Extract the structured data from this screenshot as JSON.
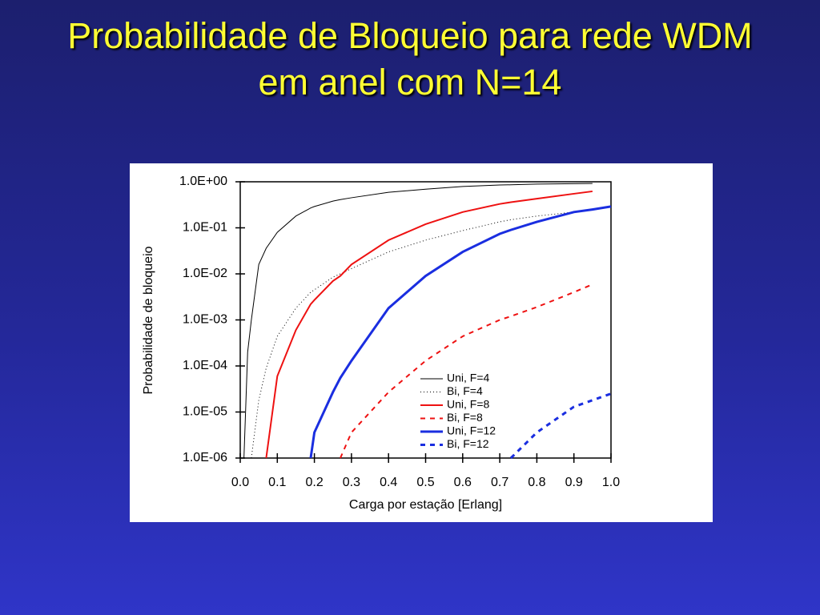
{
  "title": "Probabilidade de Bloqueio para rede WDM em anel com N=14",
  "chart_data": {
    "type": "line",
    "x_label": "Carga por estação [Erlang]",
    "y_label": "Probabilidade de bloqueio",
    "x": [
      0.01,
      0.02,
      0.03,
      0.05,
      0.07,
      0.1,
      0.15,
      0.19,
      0.2,
      0.25,
      0.27,
      0.3,
      0.4,
      0.5,
      0.6,
      0.7,
      0.73,
      0.8,
      0.9,
      0.95,
      1.0
    ],
    "series": [
      {
        "name": "Uni, F=4",
        "color": "#000000",
        "line_style": "solid",
        "line_width": 1,
        "values": [
          1e-06,
          0.0002,
          0.001,
          0.016,
          0.036,
          0.08,
          0.18,
          0.27,
          0.29,
          0.38,
          0.41,
          0.45,
          0.59,
          0.69,
          0.79,
          0.85,
          0.86,
          0.89,
          0.91,
          0.92,
          null
        ]
      },
      {
        "name": "Bi, F=4",
        "color": "#000000",
        "line_style": "dotted",
        "line_width": 1,
        "values": [
          null,
          null,
          1e-06,
          1.8e-05,
          9e-05,
          0.00044,
          0.0018,
          0.004,
          0.0045,
          0.0085,
          0.01,
          0.013,
          0.03,
          0.054,
          0.087,
          0.135,
          0.15,
          0.18,
          0.22,
          0.25,
          null
        ]
      },
      {
        "name": "Uni, F=8",
        "color": "#ee1111",
        "line_style": "solid",
        "line_width": 2,
        "values": [
          null,
          null,
          null,
          null,
          1e-06,
          6e-05,
          0.0006,
          0.0022,
          0.0027,
          0.007,
          0.009,
          0.016,
          0.054,
          0.12,
          0.22,
          0.33,
          0.36,
          0.43,
          0.55,
          0.62,
          null
        ]
      },
      {
        "name": "Bi, F=8",
        "color": "#ee1111",
        "line_style": "dashed",
        "line_width": 2,
        "values": [
          null,
          null,
          null,
          null,
          null,
          null,
          null,
          null,
          null,
          null,
          1e-06,
          3.6e-06,
          2.7e-05,
          0.00013,
          0.00044,
          0.001,
          0.0012,
          0.0019,
          0.004,
          0.0059,
          null
        ]
      },
      {
        "name": "Uni, F=12",
        "color": "#1a2ee0",
        "line_style": "solid",
        "line_width": 3,
        "values": [
          null,
          null,
          null,
          null,
          null,
          null,
          null,
          1e-06,
          3.6e-06,
          2.7e-05,
          5.5e-05,
          0.00013,
          0.0018,
          0.009,
          0.03,
          0.074,
          0.09,
          0.135,
          0.22,
          0.25,
          0.29
        ]
      },
      {
        "name": "Bi, F=12",
        "color": "#1a2ee0",
        "line_style": "dashed",
        "line_width": 3,
        "values": [
          null,
          null,
          null,
          null,
          null,
          null,
          null,
          null,
          null,
          null,
          null,
          null,
          null,
          null,
          null,
          null,
          1e-06,
          3.6e-06,
          1.3e-05,
          1.8e-05,
          2.5e-05
        ]
      }
    ],
    "xlim": [
      0,
      1
    ],
    "xticks": [
      {
        "value": 0,
        "label": "0.0"
      },
      0.1,
      0.2,
      0.3,
      0.4,
      0.5,
      0.6,
      0.7,
      0.8,
      0.9,
      {
        "value": 1,
        "label": "1.0"
      }
    ],
    "ylim": [
      1e-06,
      1
    ],
    "log_y": true,
    "yticks": [
      {
        "value": 1,
        "label": "1.0E+00"
      },
      {
        "value": 0.1,
        "label": "1.0E-01"
      },
      {
        "value": 0.01,
        "label": "1.0E-02"
      },
      {
        "value": 0.001,
        "label": "1.0E-03"
      },
      {
        "value": 0.0001,
        "label": "1.0E-04"
      },
      {
        "value": 1e-05,
        "label": "1.0E-05"
      },
      {
        "value": 1e-06,
        "label": "1.0E-06"
      }
    ],
    "legend": "lower-right"
  }
}
